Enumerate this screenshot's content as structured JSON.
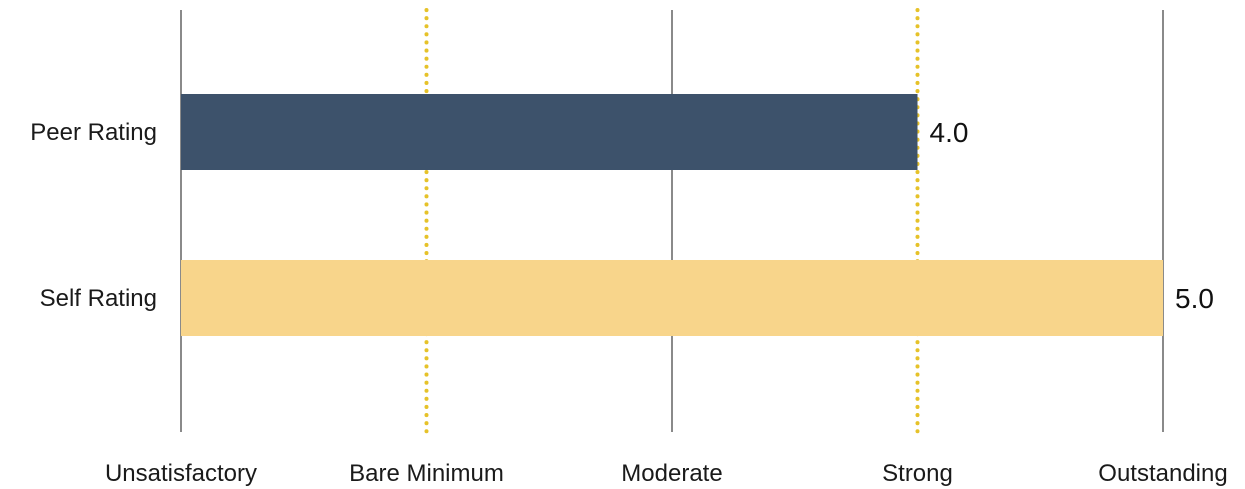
{
  "chart_data": {
    "type": "bar",
    "orientation": "horizontal",
    "title": "",
    "xlabel": "",
    "ylabel": "",
    "categories": [
      "Peer Rating",
      "Self Rating"
    ],
    "values": [
      4.0,
      5.0
    ],
    "value_labels": [
      "4.0",
      "5.0"
    ],
    "bar_colors": [
      "#3d526b",
      "#f8d58b"
    ],
    "xlim": [
      1,
      5
    ],
    "ticks": [
      {
        "value": 1,
        "label": "Unsatisfactory",
        "style": "solid"
      },
      {
        "value": 2,
        "label": "Bare Minimum",
        "style": "dotted"
      },
      {
        "value": 3,
        "label": "Moderate",
        "style": "solid"
      },
      {
        "value": 4,
        "label": "Strong",
        "style": "dotted"
      },
      {
        "value": 5,
        "label": "Outstanding",
        "style": "solid"
      }
    ],
    "grid": true,
    "grid_colors": {
      "solid": "#8a8a8a",
      "dotted": "#e6c229"
    },
    "legend": "none"
  }
}
